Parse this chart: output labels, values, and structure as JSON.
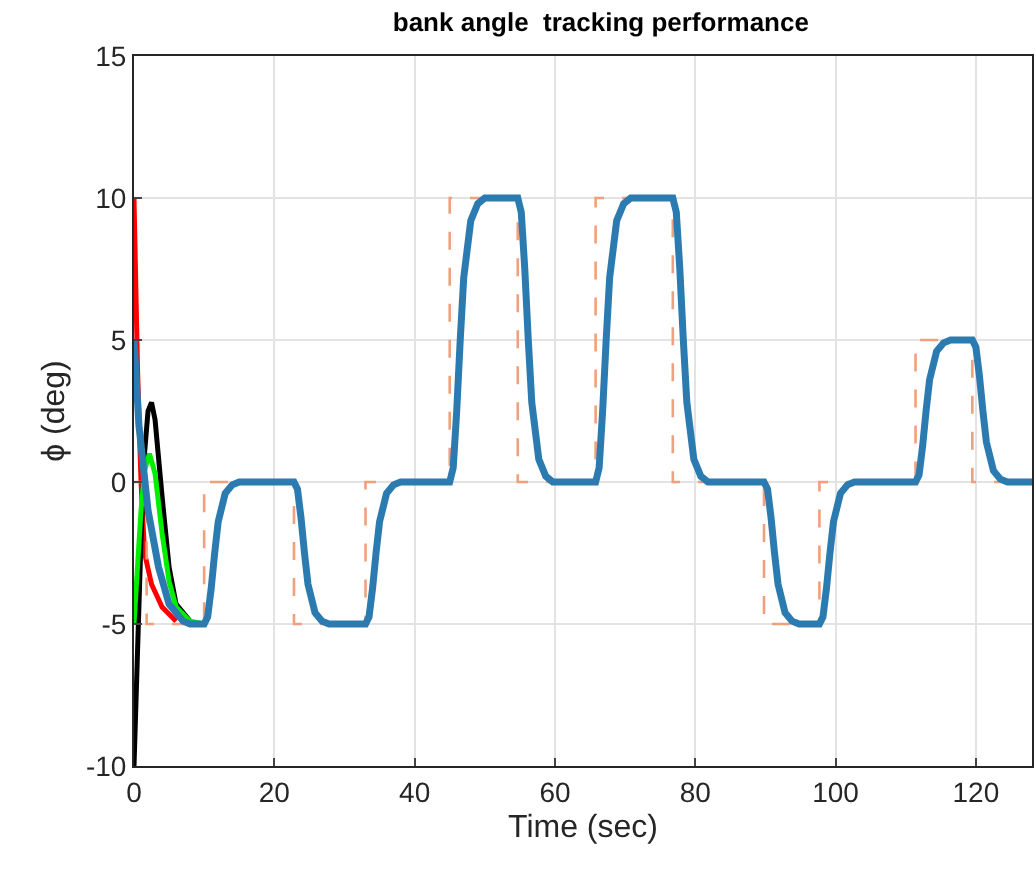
{
  "chart_data": {
    "type": "line",
    "title": "bank angle  tracking performance",
    "xlabel": "Time (sec)",
    "ylabel": "ϕ (deg)",
    "xlim": [
      0,
      128
    ],
    "xticks": [
      0,
      20,
      40,
      60,
      80,
      100,
      120
    ],
    "ylim": [
      -10,
      15
    ],
    "yticks": [
      -10,
      -5,
      0,
      5,
      10,
      15
    ],
    "grid": true,
    "marker": "none",
    "series": [
      {
        "color": "#ff0000",
        "x": [
          0,
          0.5,
          1,
          1.5,
          2.5,
          4,
          6
        ],
        "values": [
          10,
          4,
          0,
          -2.5,
          -3.6,
          -4.4,
          -4.9
        ]
      },
      {
        "color": "#000000",
        "x": [
          0,
          0.5,
          1,
          1.5,
          2,
          2.5,
          3,
          4,
          5,
          6,
          8
        ],
        "values": [
          -10,
          -6,
          -2,
          1,
          2.5,
          2.8,
          2.2,
          -0.5,
          -3,
          -4.3,
          -4.9
        ]
      },
      {
        "color": "#00ee00",
        "x": [
          0,
          0.5,
          1,
          1.5,
          2.2,
          3,
          4,
          5,
          6,
          8,
          10
        ],
        "values": [
          -5,
          -3,
          -1,
          0.4,
          1,
          0.3,
          -1.8,
          -3.5,
          -4.4,
          -4.9,
          -5
        ]
      },
      {
        "type": "step",
        "line_style": "dashed",
        "color": "#f0a07a",
        "x": [
          0,
          1.8,
          10,
          22.8,
          33,
          45,
          54.7,
          65.8,
          76.8,
          89.8,
          97.7,
          111.4,
          119.5,
          128
        ],
        "values": [
          0,
          -5,
          0,
          -5,
          0,
          10,
          0,
          10,
          0,
          -5,
          0,
          5,
          0,
          0
        ]
      },
      {
        "color": "#2b7bb0",
        "x": [
          0,
          0.7,
          2,
          3.5,
          5,
          7,
          8,
          10,
          10.5,
          11,
          11.5,
          12,
          13,
          14,
          15,
          22.8,
          23.3,
          23.8,
          24.3,
          24.8,
          25.8,
          26.8,
          27.8,
          33,
          33.5,
          34,
          34.5,
          35,
          36,
          37,
          38,
          45,
          45.5,
          46,
          46.5,
          47,
          48,
          49,
          50,
          54.7,
          55.2,
          55.7,
          56.2,
          56.7,
          57.7,
          58.7,
          59.7,
          65.8,
          66.3,
          66.8,
          67.3,
          67.8,
          68.8,
          69.8,
          70.8,
          76.8,
          77.3,
          77.8,
          78.3,
          78.8,
          79.8,
          80.8,
          81.8,
          89.8,
          90.3,
          90.8,
          91.3,
          91.8,
          92.8,
          93.8,
          94.8,
          97.7,
          98.2,
          98.7,
          99.2,
          99.7,
          100.7,
          101.7,
          102.7,
          111.4,
          111.9,
          112.4,
          112.9,
          113.4,
          114.4,
          115.4,
          116.4,
          119.5,
          120,
          120.5,
          121,
          121.5,
          122.5,
          123.5,
          124.5,
          128
        ],
        "values": [
          5,
          2,
          -1,
          -3,
          -4.3,
          -4.9,
          -5,
          -5,
          -4.75,
          -3.75,
          -2.5,
          -1.4,
          -0.4,
          -0.1,
          0,
          0,
          -0.25,
          -1.25,
          -2.5,
          -3.6,
          -4.6,
          -4.9,
          -5,
          -5,
          -4.75,
          -3.75,
          -2.5,
          -1.4,
          -0.4,
          -0.1,
          0,
          0,
          0.5,
          2.5,
          5,
          7.2,
          9.2,
          9.8,
          10,
          10,
          9.5,
          7.5,
          5,
          2.8,
          0.8,
          0.2,
          0,
          0,
          0.5,
          2.5,
          5,
          7.2,
          9.2,
          9.8,
          10,
          10,
          9.5,
          7.5,
          5,
          2.8,
          0.8,
          0.2,
          0,
          0,
          -0.25,
          -1.25,
          -2.5,
          -3.6,
          -4.6,
          -4.9,
          -5,
          -5,
          -4.75,
          -3.75,
          -2.5,
          -1.4,
          -0.4,
          -0.1,
          0,
          0,
          0.25,
          1.25,
          2.5,
          3.6,
          4.6,
          4.9,
          5,
          5,
          4.75,
          3.75,
          2.5,
          1.4,
          0.4,
          0.1,
          0,
          0
        ]
      }
    ]
  }
}
